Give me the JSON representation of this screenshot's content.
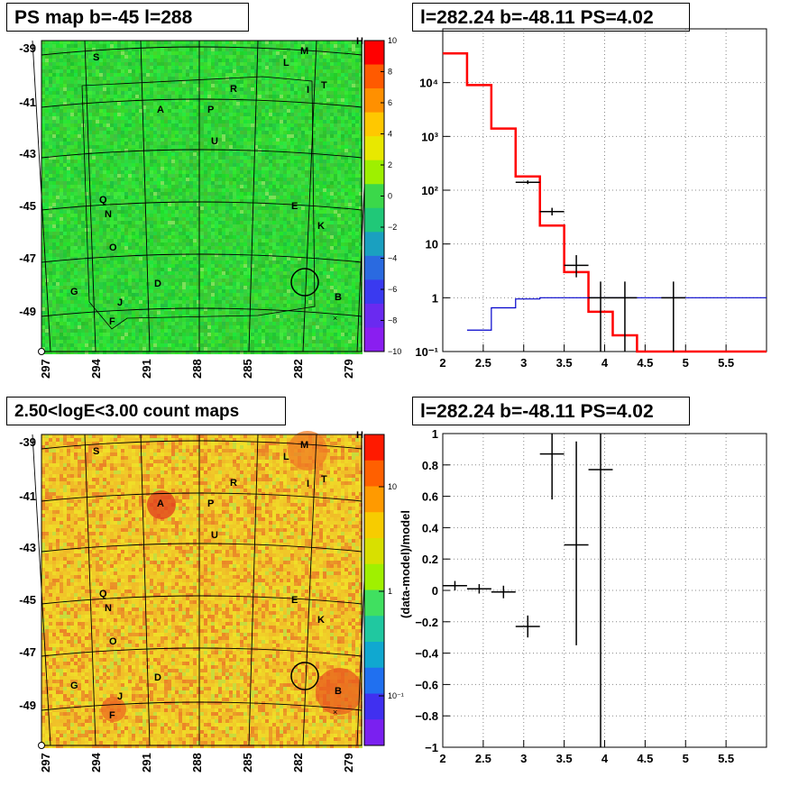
{
  "titles": {
    "tl": "PS map b=-45 l=288",
    "tr": "l=282.24 b=-48.11 PS=4.02",
    "bl": "2.50<logE<3.00 count maps",
    "br": "l=282.24 b=-48.11 PS=4.02"
  },
  "maps": {
    "y_ticks": [
      "-39",
      "-41",
      "-43",
      "-45",
      "-47",
      "-49"
    ],
    "x_ticks": [
      "297",
      "294",
      "291",
      "288",
      "285",
      "282",
      "279"
    ],
    "corner_label": "H",
    "sources": [
      "S",
      "M",
      "L",
      "T",
      "R",
      "I",
      "A",
      "P",
      "U",
      "Q",
      "N",
      "O",
      "E",
      "K",
      "D",
      "G",
      "J",
      "F",
      "B"
    ],
    "ps_colorbar": {
      "ticks": [
        "10",
        "8",
        "6",
        "4",
        "2",
        "0",
        "−2",
        "−4",
        "−6",
        "−8",
        "−10"
      ],
      "range": [
        -10,
        10
      ]
    },
    "count_colorbar": {
      "ticks": [
        "10",
        "1",
        "10⁻¹"
      ],
      "scale": "log"
    }
  },
  "chart_data": [
    {
      "type": "line",
      "title": "l=282.24 b=-48.11 PS=4.02",
      "xlim": [
        2,
        6
      ],
      "ylim": [
        0.1,
        100000
      ],
      "yscale": "log",
      "x_ticks": [
        "2",
        "2.5",
        "3",
        "3.5",
        "4",
        "4.5",
        "5",
        "5.5"
      ],
      "y_ticks": [
        "10⁻¹",
        "1",
        "10",
        "10²",
        "10³",
        "10⁴"
      ],
      "grid": true,
      "series": [
        {
          "style": "step",
          "color": "#ff0000",
          "edges": [
            2,
            2.3,
            2.6,
            2.9,
            3.2,
            3.5,
            3.8,
            4.1,
            4.4,
            6
          ],
          "values": [
            35000,
            9000,
            1400,
            180,
            22,
            3,
            0.55,
            0.2,
            0.1
          ]
        },
        {
          "style": "step",
          "color": "#0000cc",
          "edges": [
            2.3,
            2.6,
            2.9,
            3.2,
            3.5,
            3.8,
            4.1,
            4.4,
            6
          ],
          "values": [
            0.25,
            0.65,
            0.95,
            1,
            1,
            1,
            1,
            1
          ]
        },
        {
          "style": "errorbars",
          "color": "#000000",
          "points": [
            {
              "x": 3.05,
              "xerr": 0.15,
              "y": 140,
              "ylo": 130,
              "yhi": 152
            },
            {
              "x": 3.35,
              "xerr": 0.15,
              "y": 40,
              "ylo": 34,
              "yhi": 47
            },
            {
              "x": 3.65,
              "xerr": 0.15,
              "y": 4,
              "ylo": 2.4,
              "yhi": 6.2
            },
            {
              "x": 3.95,
              "xerr": 0.15,
              "y": 1,
              "ylo": 0.1,
              "yhi": 2
            },
            {
              "x": 4.25,
              "xerr": 0.15,
              "y": 1,
              "ylo": 0.1,
              "yhi": 2
            },
            {
              "x": 4.85,
              "xerr": 0.15,
              "y": 1,
              "ylo": 0.1,
              "yhi": 2
            }
          ]
        }
      ]
    },
    {
      "type": "scatter",
      "title": "l=282.24 b=-48.11 PS=4.02",
      "xlim": [
        2,
        6
      ],
      "ylim": [
        -1,
        1
      ],
      "ylabel": "(data-model)/model",
      "x_ticks": [
        "2",
        "2.5",
        "3",
        "3.5",
        "4",
        "4.5",
        "5",
        "5.5"
      ],
      "y_ticks": [
        "−1",
        "−0.8",
        "−0.6",
        "−0.4",
        "−0.2",
        "0",
        "0.2",
        "0.4",
        "0.6",
        "0.8",
        "1"
      ],
      "grid": true,
      "series": [
        {
          "style": "errorbars",
          "color": "#000000",
          "points": [
            {
              "x": 2.15,
              "xerr": 0.15,
              "y": 0.03,
              "ylo": 0.0,
              "yhi": 0.06
            },
            {
              "x": 2.45,
              "xerr": 0.15,
              "y": 0.01,
              "ylo": -0.02,
              "yhi": 0.04
            },
            {
              "x": 2.75,
              "xerr": 0.15,
              "y": -0.01,
              "ylo": -0.05,
              "yhi": 0.03
            },
            {
              "x": 3.05,
              "xerr": 0.15,
              "y": -0.23,
              "ylo": -0.3,
              "yhi": -0.16
            },
            {
              "x": 3.35,
              "xerr": 0.15,
              "y": 0.87,
              "ylo": 0.58,
              "yhi": 1.0
            },
            {
              "x": 3.65,
              "xerr": 0.15,
              "y": 0.29,
              "ylo": -0.35,
              "yhi": 0.95
            },
            {
              "x": 3.95,
              "xerr": 0.15,
              "y": 0.77,
              "ylo": -1.0,
              "yhi": 1.0
            }
          ]
        }
      ]
    }
  ],
  "colors": {
    "ps_map_base": "#29d53a",
    "count_map_base": "#f2b12c",
    "model_total": "#ff0000",
    "model_bkg": "#0000cc"
  }
}
